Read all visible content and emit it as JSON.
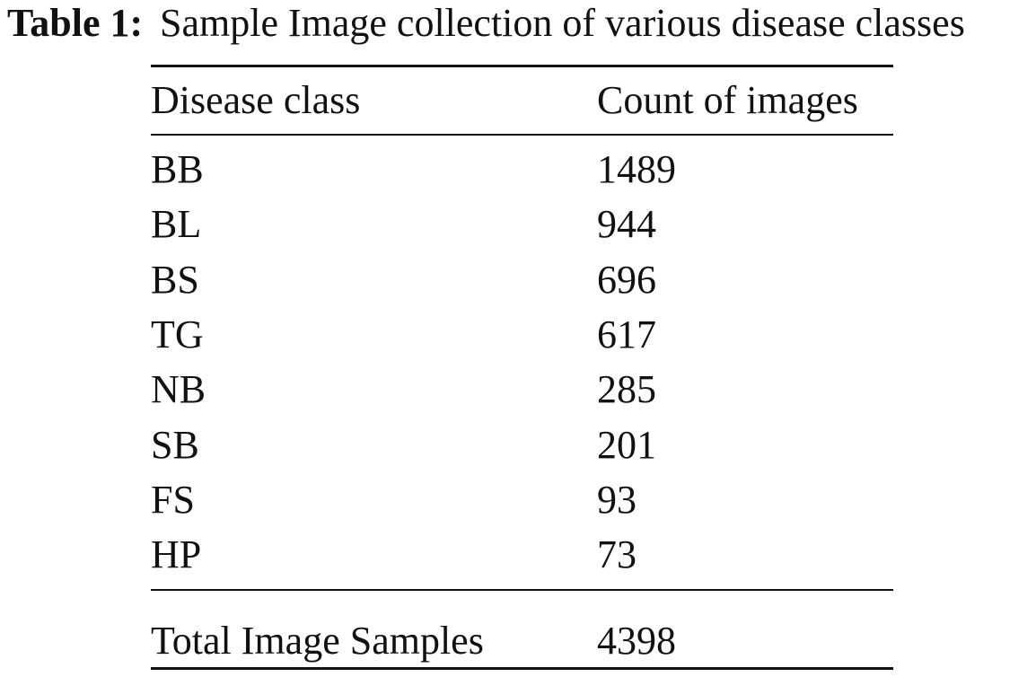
{
  "caption": {
    "label": "Table 1:",
    "text": "Sample Image collection of various disease classes"
  },
  "table": {
    "header": [
      "Disease class",
      "Count of images"
    ],
    "rows": [
      [
        "BB",
        1489
      ],
      [
        "BL",
        944
      ],
      [
        "BS",
        696
      ],
      [
        "TG",
        617
      ],
      [
        "NB",
        285
      ],
      [
        "SB",
        201
      ],
      [
        "FS",
        93
      ],
      [
        "HP",
        73
      ]
    ],
    "total": [
      "Total Image Samples",
      4398
    ]
  }
}
